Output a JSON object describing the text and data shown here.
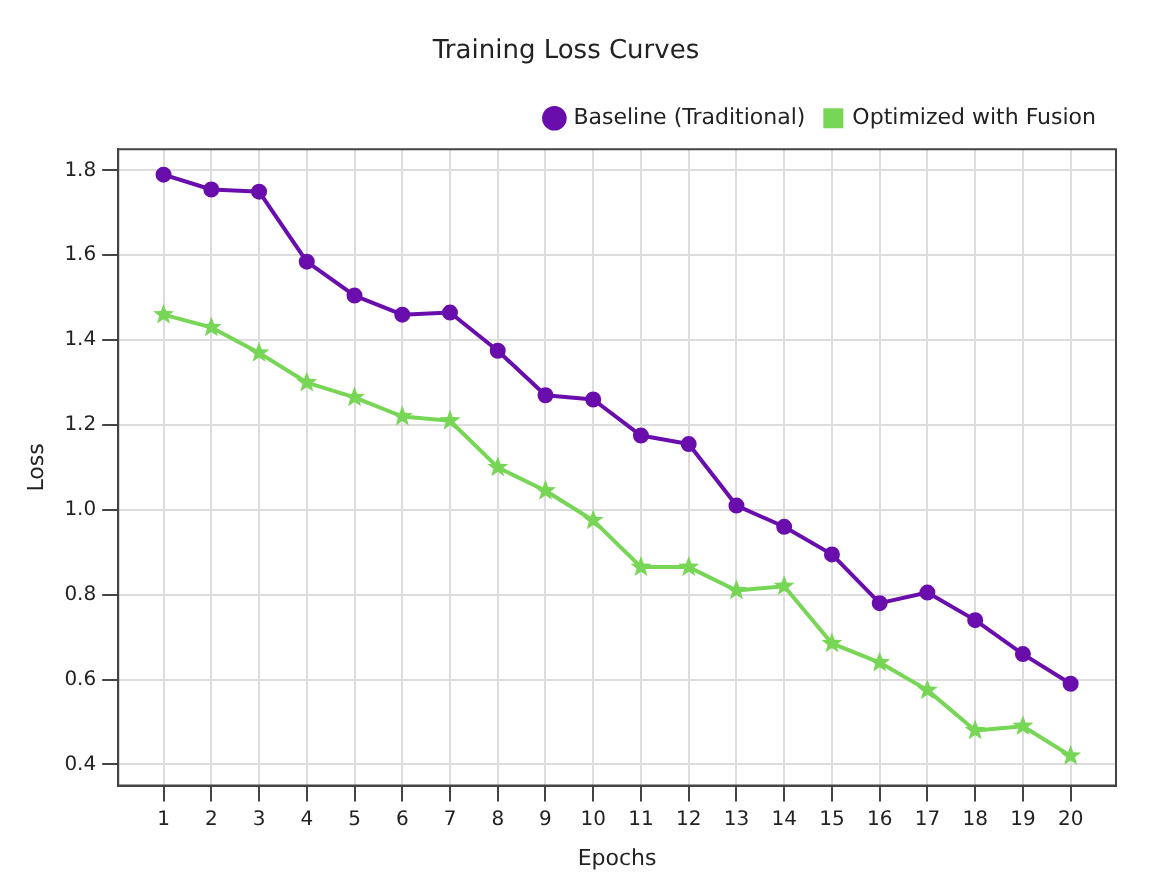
{
  "chart_data": {
    "type": "line",
    "title": "Training Loss Curves",
    "xlabel": "Epochs",
    "ylabel": "Loss",
    "x": [
      1,
      2,
      3,
      4,
      5,
      6,
      7,
      8,
      9,
      10,
      11,
      12,
      13,
      14,
      15,
      16,
      17,
      18,
      19,
      20
    ],
    "series": [
      {
        "name": "Baseline (Traditional)",
        "color": "#6a0dad",
        "marker": "circle",
        "values": [
          1.79,
          1.755,
          1.75,
          1.585,
          1.505,
          1.46,
          1.465,
          1.375,
          1.27,
          1.26,
          1.175,
          1.155,
          1.01,
          0.96,
          0.895,
          0.78,
          0.805,
          0.74,
          0.66,
          0.59
        ]
      },
      {
        "name": "Optimized with Fusion",
        "color": "#77d655",
        "marker": "star",
        "values": [
          1.46,
          1.43,
          1.37,
          1.3,
          1.265,
          1.22,
          1.21,
          1.1,
          1.045,
          0.975,
          0.865,
          0.865,
          0.81,
          0.82,
          0.685,
          0.64,
          0.575,
          0.48,
          0.49,
          0.42
        ]
      }
    ],
    "xlim": [
      0.05,
      20.95
    ],
    "xticks": [
      1,
      2,
      3,
      4,
      5,
      6,
      7,
      8,
      9,
      10,
      11,
      12,
      13,
      14,
      15,
      16,
      17,
      18,
      19,
      20
    ],
    "ylim": [
      0.35,
      1.85
    ],
    "yticks": [
      0.4,
      0.6,
      0.8,
      {
        "value": 1,
        "label": "1.0"
      },
      1.2,
      1.4,
      1.6,
      1.8
    ],
    "grid": true,
    "line_style": "solid",
    "legend": "top right"
  }
}
